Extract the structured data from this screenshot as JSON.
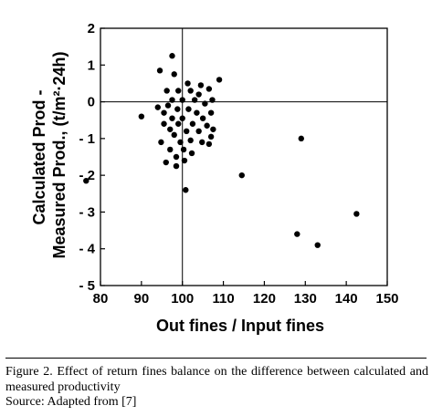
{
  "chart_data": {
    "type": "scatter",
    "xlabel": "Out fines / Input fines",
    "ylabel_lines": [
      "Calculated Prod -",
      "Measured Prod., (t/m²·24h)"
    ],
    "xlim": [
      80,
      150
    ],
    "ylim": [
      -5,
      2
    ],
    "x_ticks": [
      "80",
      "90",
      "100",
      "110",
      "120",
      "130",
      "140",
      "150"
    ],
    "y_ticks": [
      "2",
      "1",
      "0",
      "- 1",
      "- 2",
      "- 3",
      "- 4",
      "- 5"
    ],
    "grid": false,
    "reference_lines": {
      "x": 100,
      "y": 0
    },
    "marker_color": "#000000",
    "points": [
      {
        "x": 76.5,
        "y": -2.15
      },
      {
        "x": 90,
        "y": -0.4
      },
      {
        "x": 94,
        "y": -0.15
      },
      {
        "x": 94.5,
        "y": 0.85
      },
      {
        "x": 94.8,
        "y": -1.1
      },
      {
        "x": 95.5,
        "y": -0.3
      },
      {
        "x": 95.5,
        "y": -0.6
      },
      {
        "x": 96,
        "y": -1.65
      },
      {
        "x": 96.2,
        "y": 0.3
      },
      {
        "x": 96.5,
        "y": -0.1
      },
      {
        "x": 97,
        "y": -0.75
      },
      {
        "x": 97,
        "y": -1.3
      },
      {
        "x": 97.5,
        "y": 1.25
      },
      {
        "x": 97.5,
        "y": 0.05
      },
      {
        "x": 97.5,
        "y": -0.45
      },
      {
        "x": 98,
        "y": 0.75
      },
      {
        "x": 98,
        "y": -0.9
      },
      {
        "x": 98.5,
        "y": -1.5
      },
      {
        "x": 98.5,
        "y": -1.75
      },
      {
        "x": 98.8,
        "y": -0.2
      },
      {
        "x": 99,
        "y": 0.3
      },
      {
        "x": 99,
        "y": -0.6
      },
      {
        "x": 99.5,
        "y": -1.1
      },
      {
        "x": 100,
        "y": 0.05
      },
      {
        "x": 100,
        "y": -0.45
      },
      {
        "x": 100.3,
        "y": -1.3
      },
      {
        "x": 100.5,
        "y": -1.6
      },
      {
        "x": 100.8,
        "y": -2.4
      },
      {
        "x": 101,
        "y": -0.8
      },
      {
        "x": 101.3,
        "y": 0.5
      },
      {
        "x": 101.5,
        "y": -0.2
      },
      {
        "x": 102,
        "y": 0.3
      },
      {
        "x": 102,
        "y": -1.05
      },
      {
        "x": 102.3,
        "y": -1.4
      },
      {
        "x": 102.5,
        "y": -0.6
      },
      {
        "x": 103,
        "y": 0.05
      },
      {
        "x": 103.5,
        "y": -0.3
      },
      {
        "x": 104,
        "y": 0.2
      },
      {
        "x": 104,
        "y": -0.8
      },
      {
        "x": 104.5,
        "y": 0.45
      },
      {
        "x": 104.8,
        "y": -1.1
      },
      {
        "x": 105,
        "y": -0.45
      },
      {
        "x": 105.5,
        "y": -0.05
      },
      {
        "x": 106,
        "y": -0.65
      },
      {
        "x": 106.5,
        "y": 0.35
      },
      {
        "x": 106.5,
        "y": -1.15
      },
      {
        "x": 107,
        "y": -0.3
      },
      {
        "x": 107,
        "y": -0.95
      },
      {
        "x": 107.3,
        "y": 0.05
      },
      {
        "x": 107.5,
        "y": -0.75
      },
      {
        "x": 109,
        "y": 0.6
      },
      {
        "x": 114.5,
        "y": -2.0
      },
      {
        "x": 128,
        "y": -3.6
      },
      {
        "x": 129,
        "y": -1.0
      },
      {
        "x": 133,
        "y": -3.9
      },
      {
        "x": 142.5,
        "y": -3.05
      }
    ]
  },
  "caption": {
    "main": "Figure 2. Effect of return fines balance on the difference between calculated and measured productivity",
    "source": "Source: Adapted from [7]"
  }
}
